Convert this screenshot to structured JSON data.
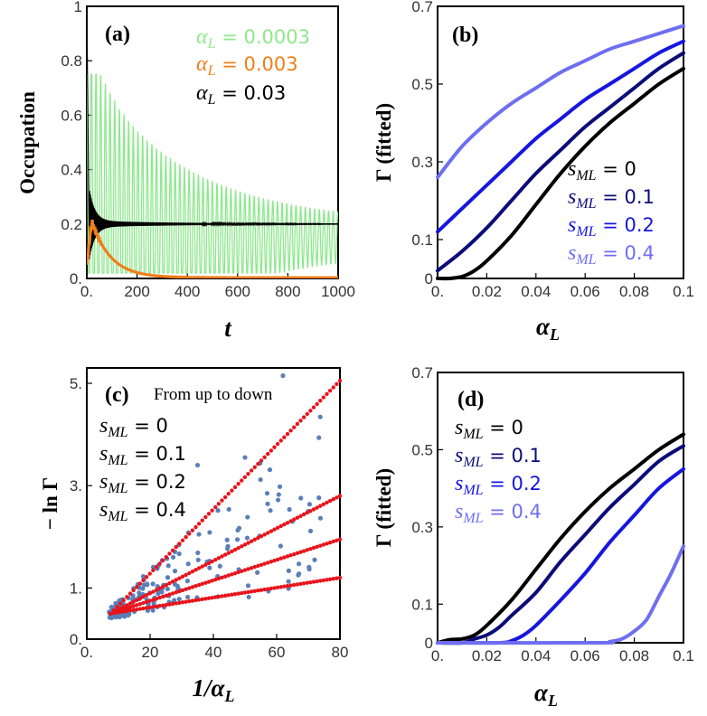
{
  "chart_data": [
    {
      "id": "a",
      "type": "line",
      "panel_label": "(a)",
      "xlabel": "t",
      "ylabel": "Occupation",
      "xlim": [
        0,
        1000
      ],
      "ylim": [
        0,
        1
      ],
      "xticks": [
        0,
        200,
        400,
        600,
        800,
        1000
      ],
      "xtick_labels": [
        "0.",
        "200",
        "400",
        "600",
        "800",
        "1000"
      ],
      "yticks": [
        0,
        0.2,
        0.4,
        0.6,
        0.8,
        1
      ],
      "ytick_labels": [
        "0.",
        "0.2",
        "0.4",
        "0.6",
        "0.8",
        "1"
      ],
      "series": [
        {
          "name": "α_L = 0.0003",
          "legend_var": "α",
          "legend_sub": "L",
          "legend_val": " = 0.0003",
          "color": "#8ee88e",
          "kind": "oscillating",
          "amp0": 0.55,
          "tau": 400,
          "mean": 0.2,
          "period": 18.5,
          "start": 1.0
        },
        {
          "name": "α_L = 0.003",
          "legend_var": "α",
          "legend_sub": "L",
          "legend_val": " = 0.003",
          "color": "#f07f1a",
          "kind": "decay",
          "peak": 0.21,
          "peak_t": 20,
          "tau": 75
        },
        {
          "name": "α_L = 0.03",
          "legend_var": "α",
          "legend_sub": "L",
          "legend_val": " = 0.03",
          "color": "#000000",
          "kind": "damped",
          "amp0": 0.8,
          "tau": 22,
          "mean": 0.2,
          "period": 3,
          "start": 1.0
        }
      ]
    },
    {
      "id": "b",
      "type": "line",
      "panel_label": "(b)",
      "xlabel": "α_L",
      "xlabel_var": "α",
      "xlabel_sub": "L",
      "ylabel": "Γ (fitted)",
      "xlim": [
        0,
        0.1
      ],
      "ylim": [
        0,
        0.7
      ],
      "xticks": [
        0,
        0.02,
        0.04,
        0.06,
        0.08,
        0.1
      ],
      "xtick_labels": [
        "0.",
        "0.02",
        "0.04",
        "0.06",
        "0.08",
        "0.1"
      ],
      "yticks": [
        0,
        0.1,
        0.3,
        0.5,
        0.7
      ],
      "ytick_labels": [
        "0",
        "0.1",
        "0.3",
        "0.5",
        "0.7"
      ],
      "series": [
        {
          "name": "s_ML = 0",
          "legend_var": "s",
          "legend_sub": "ML",
          "legend_val": " = 0",
          "color": "#000000",
          "x": [
            0.0,
            0.005,
            0.01,
            0.015,
            0.02,
            0.03,
            0.04,
            0.05,
            0.06,
            0.07,
            0.08,
            0.09,
            0.1
          ],
          "y": [
            0.0,
            0.0,
            0.005,
            0.02,
            0.045,
            0.11,
            0.19,
            0.27,
            0.34,
            0.4,
            0.45,
            0.5,
            0.54
          ]
        },
        {
          "name": "s_ML = 0.1",
          "legend_var": "s",
          "legend_sub": "ML",
          "legend_val": " = 0.1",
          "color": "#0b0b7a",
          "x": [
            0.0,
            0.01,
            0.02,
            0.03,
            0.04,
            0.05,
            0.06,
            0.07,
            0.08,
            0.09,
            0.1
          ],
          "y": [
            0.02,
            0.07,
            0.13,
            0.2,
            0.27,
            0.33,
            0.39,
            0.44,
            0.49,
            0.54,
            0.58
          ]
        },
        {
          "name": "s_ML = 0.2",
          "legend_var": "s",
          "legend_sub": "ML",
          "legend_val": " = 0.2",
          "color": "#1616e0",
          "x": [
            0.0,
            0.01,
            0.02,
            0.03,
            0.04,
            0.05,
            0.06,
            0.07,
            0.08,
            0.09,
            0.1
          ],
          "y": [
            0.12,
            0.18,
            0.24,
            0.3,
            0.36,
            0.41,
            0.46,
            0.5,
            0.54,
            0.58,
            0.61
          ]
        },
        {
          "name": "s_ML = 0.4",
          "legend_var": "s",
          "legend_sub": "ML",
          "legend_val": " = 0.4",
          "color": "#6e6ef2",
          "x": [
            0.0,
            0.01,
            0.02,
            0.03,
            0.04,
            0.05,
            0.06,
            0.07,
            0.08,
            0.09,
            0.1
          ],
          "y": [
            0.26,
            0.34,
            0.4,
            0.45,
            0.49,
            0.53,
            0.56,
            0.59,
            0.61,
            0.63,
            0.65
          ]
        }
      ]
    },
    {
      "id": "c",
      "type": "scatter",
      "panel_label": "(c)",
      "annotation": "From up to down",
      "xlabel": "1/α_L",
      "xlabel_pre": "1/",
      "xlabel_var": "α",
      "xlabel_sub": "L",
      "ylabel": "− ln Γ",
      "xlim": [
        0,
        80
      ],
      "ylim": [
        0,
        5.3
      ],
      "xticks": [
        0,
        20,
        40,
        60,
        80
      ],
      "xtick_labels": [
        "0.",
        "20",
        "40",
        "60",
        "80"
      ],
      "yticks": [
        0,
        1,
        3,
        5
      ],
      "ytick_labels": [
        "0.",
        "1.",
        "3.",
        "5."
      ],
      "fit_color": "#e8141c",
      "point_color": "#5b7fb8",
      "fits": [
        {
          "name": "s_ML = 0",
          "legend_var": "s",
          "legend_sub": "ML",
          "legend_val": " = 0",
          "x0": 7.5,
          "y0": 0.5,
          "x1": 80,
          "y1": 5.05
        },
        {
          "name": "s_ML = 0.1",
          "legend_var": "s",
          "legend_sub": "ML",
          "legend_val": " = 0.1",
          "x0": 7.5,
          "y0": 0.5,
          "x1": 80,
          "y1": 2.8
        },
        {
          "name": "s_ML = 0.2",
          "legend_var": "s",
          "legend_sub": "ML",
          "legend_val": " = 0.2",
          "x0": 7.5,
          "y0": 0.5,
          "x1": 80,
          "y1": 1.95
        },
        {
          "name": "s_ML = 0.4",
          "legend_var": "s",
          "legend_sub": "ML",
          "legend_val": " = 0.4",
          "x0": 7.5,
          "y0": 0.5,
          "x1": 80,
          "y1": 1.2
        }
      ],
      "outliers": [
        {
          "x": 62,
          "y": 5.15
        },
        {
          "x": 50,
          "y": 3.55
        },
        {
          "x": 57,
          "y": 2.85
        },
        {
          "x": 65,
          "y": 2.3
        },
        {
          "x": 70,
          "y": 2.5
        },
        {
          "x": 72,
          "y": 1.55
        },
        {
          "x": 35,
          "y": 3.4
        }
      ]
    },
    {
      "id": "d",
      "type": "line",
      "panel_label": "(d)",
      "xlabel": "α_L",
      "xlabel_var": "α",
      "xlabel_sub": "L",
      "ylabel": "Γ (fitted)",
      "xlim": [
        0,
        0.1
      ],
      "ylim": [
        0,
        0.7
      ],
      "xticks": [
        0,
        0.02,
        0.04,
        0.06,
        0.08,
        0.1
      ],
      "xtick_labels": [
        "0.",
        "0.02",
        "0.04",
        "0.06",
        "0.08",
        "0.1"
      ],
      "yticks": [
        0,
        0.1,
        0.3,
        0.5,
        0.7
      ],
      "ytick_labels": [
        "0",
        "0.1",
        "0.3",
        "0.5",
        "0.7"
      ],
      "series": [
        {
          "name": "s_ML = 0",
          "legend_var": "s",
          "legend_sub": "ML",
          "legend_val": " = 0",
          "color": "#000000",
          "x": [
            0.0,
            0.005,
            0.01,
            0.015,
            0.02,
            0.03,
            0.04,
            0.05,
            0.06,
            0.07,
            0.08,
            0.09,
            0.1
          ],
          "y": [
            0.0,
            0.008,
            0.01,
            0.02,
            0.045,
            0.11,
            0.19,
            0.27,
            0.34,
            0.4,
            0.45,
            0.5,
            0.54
          ]
        },
        {
          "name": "s_ML = 0.1",
          "legend_var": "s",
          "legend_sub": "ML",
          "legend_val": " = 0.1",
          "color": "#0b0b7a",
          "x": [
            0.0,
            0.01,
            0.015,
            0.02,
            0.025,
            0.03,
            0.04,
            0.05,
            0.06,
            0.07,
            0.08,
            0.09,
            0.1
          ],
          "y": [
            0.0,
            0.0,
            0.01,
            0.02,
            0.04,
            0.07,
            0.13,
            0.21,
            0.28,
            0.35,
            0.41,
            0.47,
            0.51
          ]
        },
        {
          "name": "s_ML = 0.2",
          "legend_var": "s",
          "legend_sub": "ML",
          "legend_val": " = 0.2",
          "color": "#1616e0",
          "x": [
            0.0,
            0.025,
            0.03,
            0.035,
            0.04,
            0.05,
            0.06,
            0.07,
            0.08,
            0.09,
            0.1
          ],
          "y": [
            0.0,
            0.0,
            0.005,
            0.02,
            0.045,
            0.11,
            0.18,
            0.26,
            0.33,
            0.4,
            0.45
          ]
        },
        {
          "name": "s_ML = 0.4",
          "legend_var": "s",
          "legend_sub": "ML",
          "legend_val": " = 0.4",
          "color": "#6e6ef2",
          "x": [
            0.0,
            0.065,
            0.07,
            0.075,
            0.08,
            0.085,
            0.09,
            0.095,
            0.1
          ],
          "y": [
            0.0,
            0.0,
            0.003,
            0.01,
            0.03,
            0.06,
            0.12,
            0.18,
            0.25
          ]
        }
      ]
    }
  ]
}
